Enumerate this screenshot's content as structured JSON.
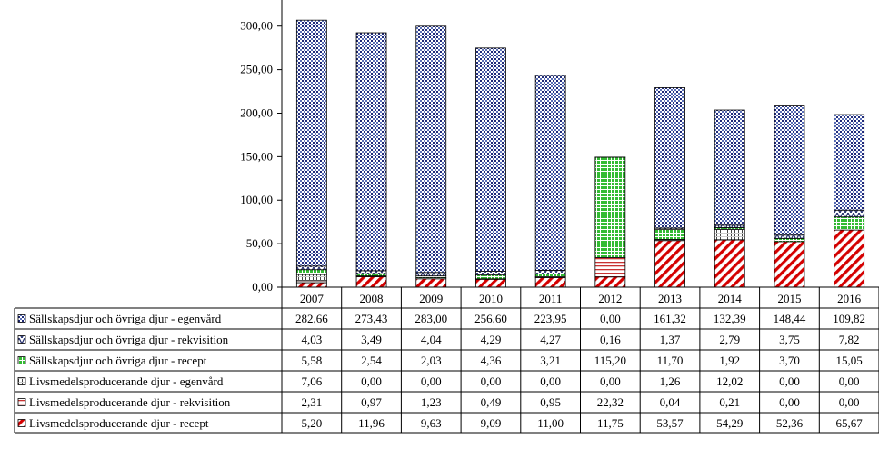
{
  "chart_data": {
    "type": "bar",
    "stacked": true,
    "title": "",
    "xlabel": "",
    "ylabel": "",
    "ylim": [
      0,
      330
    ],
    "yticks": [
      "0,00",
      "50,00",
      "100,00",
      "150,00",
      "200,00",
      "250,00",
      "300,00"
    ],
    "ytick_values": [
      0,
      50,
      100,
      150,
      200,
      250,
      300
    ],
    "grid": false,
    "legend_placement": "data-table-rows",
    "categories": [
      "2007",
      "2008",
      "2009",
      "2010",
      "2011",
      "2012",
      "2013",
      "2014",
      "2015",
      "2016"
    ],
    "series": [
      {
        "name": "Livsmedelsproducerande djur - recept",
        "values": [
          5.2,
          11.96,
          9.63,
          9.09,
          11.0,
          11.75,
          53.57,
          54.29,
          52.36,
          65.67
        ],
        "labels": [
          "5,20",
          "11,96",
          "9,63",
          "9,09",
          "11,00",
          "11,75",
          "53,57",
          "54,29",
          "52,36",
          "65,67"
        ],
        "color": "#cc0000",
        "pattern": "diagonal-stripes"
      },
      {
        "name": "Livsmedelsproducerande djur - rekvisition",
        "values": [
          2.31,
          0.97,
          1.23,
          0.49,
          0.95,
          22.32,
          0.04,
          0.21,
          0.0,
          0.0
        ],
        "labels": [
          "2,31",
          "0,97",
          "1,23",
          "0,49",
          "0,95",
          "22,32",
          "0,04",
          "0,21",
          "0,00",
          "0,00"
        ],
        "color": "#cc3333",
        "pattern": "horizontal-lines"
      },
      {
        "name": "Livsmedelsproducerande djur - egenvård",
        "values": [
          7.06,
          0.0,
          0.0,
          0.0,
          0.0,
          0.0,
          1.26,
          12.02,
          0.0,
          0.0
        ],
        "labels": [
          "7,06",
          "0,00",
          "0,00",
          "0,00",
          "0,00",
          "0,00",
          "1,26",
          "12,02",
          "0,00",
          "0,00"
        ],
        "color": "#555555",
        "pattern": "vertical-lines"
      },
      {
        "name": "Sällskapsdjur och övriga djur - recept",
        "values": [
          5.58,
          2.54,
          2.03,
          4.36,
          3.21,
          115.2,
          11.7,
          1.92,
          3.7,
          15.05
        ],
        "labels": [
          "5,58",
          "2,54",
          "2,03",
          "4,36",
          "3,21",
          "115,20",
          "11,70",
          "1,92",
          "3,70",
          "15,05"
        ],
        "color": "#33aa33",
        "pattern": "grid"
      },
      {
        "name": "Sällskapsdjur och övriga djur - rekvisition",
        "values": [
          4.03,
          3.49,
          4.04,
          4.29,
          4.27,
          0.16,
          1.37,
          2.79,
          3.75,
          7.82
        ],
        "labels": [
          "4,03",
          "3,49",
          "4,04",
          "4,29",
          "4,27",
          "0,16",
          "1,37",
          "2,79",
          "3,75",
          "7,82"
        ],
        "color": "#1f2a6b",
        "pattern": "zigzag"
      },
      {
        "name": "Sällskapsdjur och övriga djur - egenvård",
        "values": [
          282.66,
          273.43,
          283.0,
          256.6,
          223.95,
          0.0,
          161.32,
          132.39,
          148.44,
          109.82
        ],
        "labels": [
          "282,66",
          "273,43",
          "283,00",
          "256,60",
          "223,95",
          "0,00",
          "161,32",
          "132,39",
          "148,44",
          "109,82"
        ],
        "color": "#1f2a7a",
        "pattern": "dots"
      }
    ],
    "table_row_order": [
      5,
      4,
      3,
      2,
      1,
      0
    ]
  }
}
